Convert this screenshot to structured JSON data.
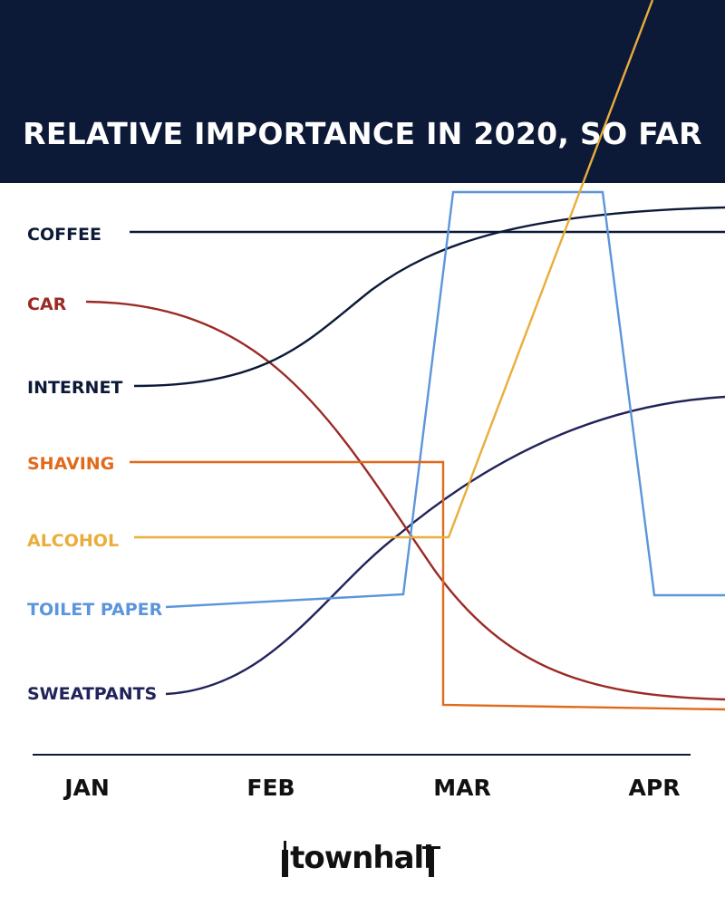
{
  "chart_data": {
    "type": "line",
    "title": "RELATIVE IMPORTANCE IN 2020, SO FAR",
    "categories": [
      "JAN",
      "FEB",
      "MAR",
      "APR"
    ],
    "xlabel": "",
    "ylabel": "",
    "grid": false,
    "legend": "left",
    "series": [
      {
        "name": "COFFEE",
        "color": "#0c1a38"
      },
      {
        "name": "CAR",
        "color": "#9b2a25"
      },
      {
        "name": "INTERNET",
        "color": "#0c1a38"
      },
      {
        "name": "SHAVING",
        "color": "#e06a1b"
      },
      {
        "name": "ALCOHOL",
        "color": "#e9ad3b"
      },
      {
        "name": "TOILET PAPER",
        "color": "#5b95dc"
      },
      {
        "name": "SWEATPANTS",
        "color": "#22235a"
      }
    ]
  },
  "logo": {
    "text": "townhall"
  },
  "colors": {
    "header_bg": "#0c1a38",
    "axis": "#0c1a38"
  }
}
